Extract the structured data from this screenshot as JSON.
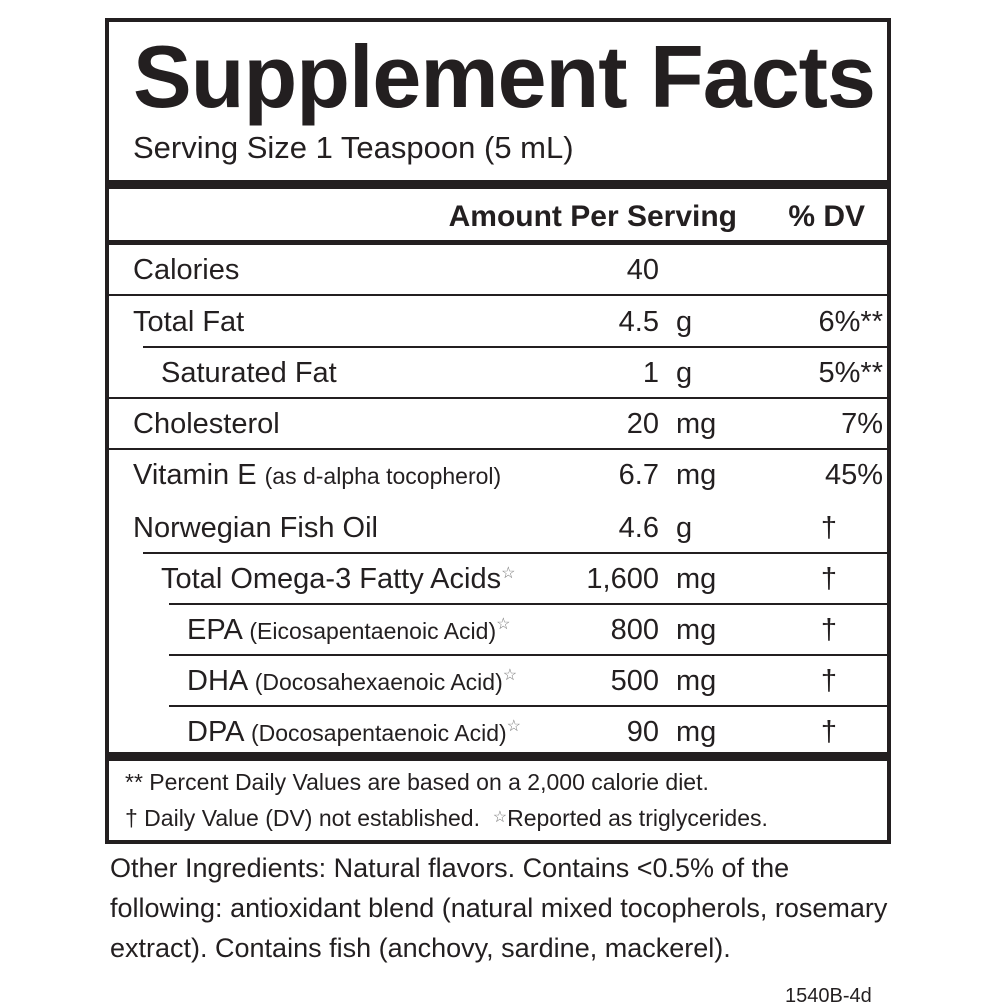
{
  "title": "Supplement Facts",
  "serving_size": "Serving Size 1 Teaspoon (5 mL)",
  "header": {
    "amount": "Amount Per Serving",
    "dv": "% DV"
  },
  "rows": [
    {
      "label": "Calories",
      "amount": "40",
      "unit": "",
      "dv": ""
    },
    {
      "label": "Total Fat",
      "amount": "4.5",
      "unit": "g",
      "dv": "6%**"
    },
    {
      "label": "Saturated Fat",
      "amount": "1",
      "unit": "g",
      "dv": "5%**"
    },
    {
      "label": "Cholesterol",
      "amount": "20",
      "unit": "mg",
      "dv": "7%"
    },
    {
      "label": "Vitamin E",
      "sub": "(as d-alpha tocopherol)",
      "amount": "6.7",
      "unit": "mg",
      "dv": "45%"
    },
    {
      "label": "Norwegian Fish Oil",
      "amount": "4.6",
      "unit": "g",
      "dv": "†"
    },
    {
      "label": "Total Omega-3 Fatty Acids",
      "star": "☆",
      "amount": "1,600",
      "unit": "mg",
      "dv": "†"
    },
    {
      "label": "EPA",
      "sub": "(Eicosapentaenoic Acid)",
      "star": "☆",
      "amount": "800",
      "unit": "mg",
      "dv": "†"
    },
    {
      "label": "DHA",
      "sub": "(Docosahexaenoic Acid)",
      "star": "☆",
      "amount": "500",
      "unit": "mg",
      "dv": "†"
    },
    {
      "label": "DPA",
      "sub": "(Docosapentaenoic Acid)",
      "star": "☆",
      "amount": "90",
      "unit": "mg",
      "dv": "†"
    }
  ],
  "footnotes": {
    "line1": "** Percent Daily Values are based on a 2,000 calorie diet.",
    "line2a": "† Daily Value (DV) not established.",
    "line2_star": "☆",
    "line2b": "Reported as triglycerides."
  },
  "other_ingredients": "Other Ingredients: Natural flavors. Contains <0.5% of the following: antioxidant blend (natural mixed tocopherols, rosemary extract). Contains fish (anchovy, sardine, mackerel).",
  "code": "1540B-4d"
}
